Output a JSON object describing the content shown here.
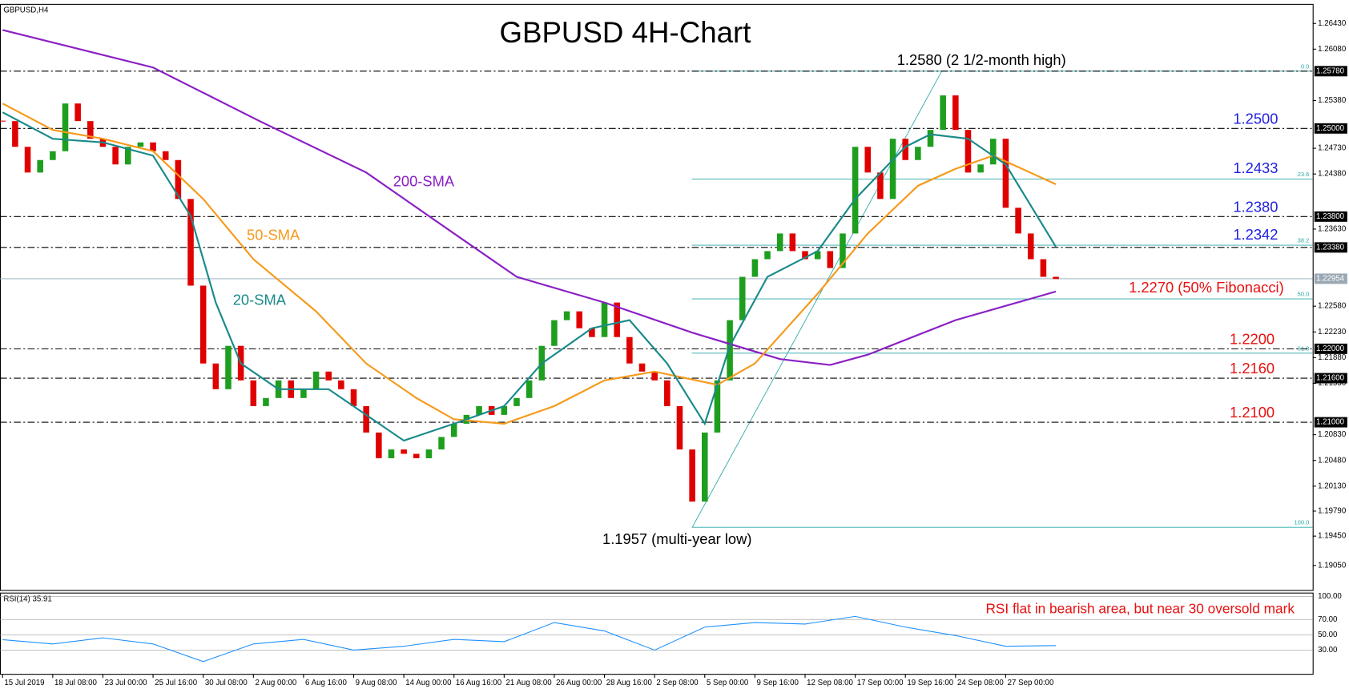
{
  "chart_data": [
    {
      "type": "candlestick",
      "title": "GBPUSD 4H-Chart",
      "symbol": "GBPUSD,H4",
      "xlim": [
        0,
        84
      ],
      "xticks": [
        {
          "value": 0,
          "label": "15 Jul 2019"
        },
        {
          "value": 4,
          "label": "18 Jul 08:00"
        },
        {
          "value": 8,
          "label": "23 Jul 00:00"
        },
        {
          "value": 12,
          "label": "25 Jul 16:00"
        },
        {
          "value": 16,
          "label": "30 Jul 08:00"
        },
        {
          "value": 20,
          "label": "2 Aug 00:00"
        },
        {
          "value": 24,
          "label": "6 Aug 16:00"
        },
        {
          "value": 28,
          "label": "9 Aug 08:00"
        },
        {
          "value": 32,
          "label": "14 Aug 00:00"
        },
        {
          "value": 36,
          "label": "16 Aug 16:00"
        },
        {
          "value": 40,
          "label": "21 Aug 08:00"
        },
        {
          "value": 44,
          "label": "26 Aug 00:00"
        },
        {
          "value": 48,
          "label": "28 Aug 16:00"
        },
        {
          "value": 52,
          "label": "2 Sep 08:00"
        },
        {
          "value": 56,
          "label": "5 Sep 00:00"
        },
        {
          "value": 60,
          "label": "9 Sep 16:00"
        },
        {
          "value": 64,
          "label": "12 Sep 08:00"
        },
        {
          "value": 68,
          "label": "17 Sep 00:00"
        },
        {
          "value": 72,
          "label": "19 Sep 16:00"
        },
        {
          "value": 76,
          "label": "24 Sep 08:00"
        },
        {
          "value": 80,
          "label": "27 Sep 00:00"
        }
      ],
      "ylim": [
        1.1871,
        1.2669
      ],
      "yticks": [
        {
          "value": 1.2643,
          "label": "1.26430"
        },
        {
          "value": 1.2608,
          "label": "1.26080"
        },
        {
          "value": 1.2538,
          "label": "1.25380"
        },
        {
          "value": 1.2473,
          "label": "1.24730"
        },
        {
          "value": 1.2438,
          "label": "1.24380"
        },
        {
          "value": 1.2363,
          "label": "1.23630"
        },
        {
          "value": 1.2258,
          "label": "1.22580"
        },
        {
          "value": 1.2223,
          "label": "1.22230"
        },
        {
          "value": 1.2188,
          "label": "1.21880"
        },
        {
          "value": 1.2153,
          "label": "1.21530"
        },
        {
          "value": 1.2083,
          "label": "1.20830"
        },
        {
          "value": 1.2048,
          "label": "1.20480"
        },
        {
          "value": 1.2013,
          "label": "1.20130"
        },
        {
          "value": 1.1979,
          "label": "1.19790"
        },
        {
          "value": 1.1945,
          "label": "1.19450"
        },
        {
          "value": 1.1905,
          "label": "1.19050"
        }
      ],
      "price": {
        "up_color": "#1e9e1e",
        "down_color": "#e00000",
        "values": [
          1.251,
          1.2475,
          1.244,
          1.2457,
          1.2469,
          1.2534,
          1.251,
          1.2486,
          1.2475,
          1.2451,
          1.2475,
          1.2481,
          1.2469,
          1.2457,
          1.2404,
          1.2286,
          1.218,
          1.2145,
          1.2204,
          1.2157,
          1.2122,
          1.2133,
          1.2157,
          1.2133,
          1.2145,
          1.2169,
          1.2157,
          1.2145,
          1.2122,
          1.2086,
          1.2051,
          1.2063,
          1.2057,
          1.2051,
          1.2063,
          1.208,
          1.2098,
          1.211,
          1.2122,
          1.211,
          1.2122,
          1.2133,
          1.2157,
          1.2204,
          1.2239,
          1.2251,
          1.2228,
          1.2216,
          1.2263,
          1.2216,
          1.218,
          1.2169,
          1.2157,
          1.2122,
          1.2063,
          1.1992,
          1.2086,
          1.2157,
          1.2239,
          1.2298,
          1.2322,
          1.2333,
          1.2357,
          1.2333,
          1.2322,
          1.2333,
          1.231,
          1.2357,
          1.2475,
          1.244,
          1.2404,
          1.2486,
          1.2457,
          1.2475,
          1.2498,
          1.2545,
          1.2498,
          1.244,
          1.2451,
          1.2486,
          1.2392,
          1.2357,
          1.2322,
          1.2298,
          1.2295
        ]
      },
      "series": [
        {
          "name": "200-SMA",
          "color": "#8a1fc4",
          "x": [
            0,
            12,
            20.5,
            29,
            36,
            41,
            48,
            55,
            62,
            66,
            69,
            76,
            84
          ],
          "values": [
            1.2634,
            1.2583,
            1.251,
            1.244,
            1.2357,
            1.2298,
            1.2263,
            1.2222,
            1.2186,
            1.2178,
            1.2192,
            1.2239,
            1.2278
          ]
        },
        {
          "name": "50-SMA",
          "color": "#f59a1b",
          "x": [
            0,
            4,
            8,
            12,
            16,
            20,
            25,
            29,
            33,
            36,
            40,
            44,
            48,
            52,
            57,
            60,
            65,
            69,
            73,
            76,
            79,
            84
          ],
          "values": [
            1.2534,
            1.2498,
            1.2486,
            1.2469,
            1.2404,
            1.2322,
            1.2251,
            1.218,
            1.2133,
            1.2104,
            1.2098,
            1.2122,
            1.2157,
            1.2169,
            1.2151,
            1.218,
            1.2275,
            1.2357,
            1.2422,
            1.2445,
            1.2463,
            1.2424
          ]
        },
        {
          "name": "20-SMA",
          "color": "#1a8a8a",
          "x": [
            0,
            4,
            8,
            12,
            15,
            17,
            19,
            22,
            26,
            29,
            32,
            36,
            40,
            43,
            47,
            50,
            53,
            56,
            58,
            61,
            65,
            68,
            72,
            74,
            77,
            80,
            84
          ],
          "values": [
            1.2522,
            1.2486,
            1.2481,
            1.2463,
            1.2381,
            1.2263,
            1.218,
            1.2145,
            1.2145,
            1.211,
            1.2075,
            1.2098,
            1.2122,
            1.218,
            1.2228,
            1.2239,
            1.218,
            1.2098,
            1.2204,
            1.2298,
            1.2333,
            1.2404,
            1.2475,
            1.2492,
            1.2486,
            1.2451,
            1.2339
          ]
        }
      ],
      "levels": [
        {
          "value": 1.2578,
          "label": "1.25780"
        },
        {
          "value": 1.25,
          "label": "1.25000"
        },
        {
          "value": 1.238,
          "label": "1.23800"
        },
        {
          "value": 1.2338,
          "label": "1.23380"
        },
        {
          "value": 1.22,
          "label": "1.22000"
        },
        {
          "value": 1.216,
          "label": "1.21600"
        },
        {
          "value": 1.21,
          "label": "1.21000"
        }
      ],
      "current_price": {
        "value": 1.22954,
        "label": "1.22954"
      },
      "fibonacci": {
        "color": "#2aa8a8",
        "levels": [
          {
            "level": "0.0",
            "price": 1.2578
          },
          {
            "level": "23.6",
            "price": 1.2431
          },
          {
            "level": "38.2",
            "price": 1.2341
          },
          {
            "level": "50.0",
            "price": 1.2268
          },
          {
            "level": "61.8",
            "price": 1.2194
          },
          {
            "level": "100.0",
            "price": 1.1957
          }
        ]
      },
      "annotations": [
        {
          "text": "1.2580 (2 1/2-month high)",
          "value": 1.258,
          "color": "#000000"
        },
        {
          "text": "1.2500",
          "value": 1.25,
          "color": "#1f1fe0"
        },
        {
          "text": "1.2433",
          "value": 1.2433,
          "color": "#1f1fe0"
        },
        {
          "text": "1.2380",
          "value": 1.238,
          "color": "#1f1fe0"
        },
        {
          "text": "1.2342",
          "value": 1.2342,
          "color": "#1f1fe0"
        },
        {
          "text": "1.2270 (50% Fibonacci)",
          "value": 1.227,
          "color": "#e81010"
        },
        {
          "text": "1.2200",
          "value": 1.22,
          "color": "#e81010"
        },
        {
          "text": "1.2160",
          "value": 1.216,
          "color": "#e81010"
        },
        {
          "text": "1.2100",
          "value": 1.21,
          "color": "#e81010"
        },
        {
          "text": "1.1957 (multi-year low)",
          "value": 1.1957,
          "color": "#000000"
        }
      ]
    },
    {
      "type": "line",
      "label": "RSI(14) 35.91",
      "annotation": "RSI flat in bearish area, but near 30 oversold mark",
      "annotation_color": "#e81010",
      "xlim": [
        0,
        84
      ],
      "ylim": [
        -1.6,
        104.5
      ],
      "yticks": [
        {
          "value": 100,
          "label": "100.00"
        },
        {
          "value": 70,
          "label": "70.00"
        },
        {
          "value": 50,
          "label": "50.00"
        },
        {
          "value": 30,
          "label": "30.00"
        }
      ],
      "series": [
        {
          "color": "#1e90ff",
          "x": [
            0,
            4,
            8,
            12,
            16,
            20,
            24,
            28,
            32,
            36,
            40,
            44,
            48,
            52,
            56,
            60,
            64,
            68,
            72,
            76,
            80,
            84
          ],
          "values": [
            43.6,
            38,
            46,
            38,
            15,
            38,
            44,
            30,
            35,
            44,
            41,
            66,
            55,
            30,
            60,
            66,
            64,
            74,
            60,
            49,
            35,
            35.91
          ]
        }
      ]
    }
  ]
}
